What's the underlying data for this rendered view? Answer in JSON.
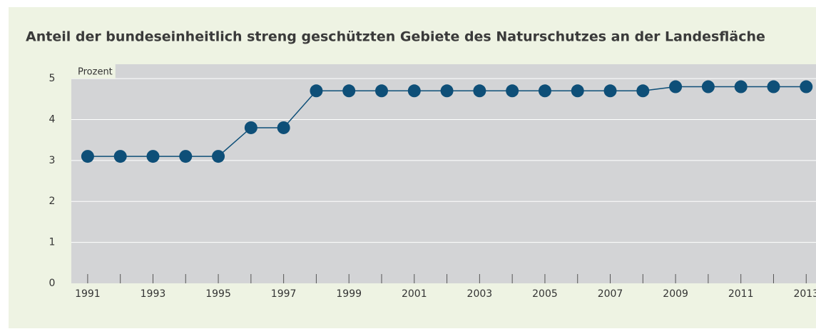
{
  "chart_data": {
    "type": "line",
    "title": "Anteil der bundeseinheitlich streng geschützten Gebiete des Naturschutzes an der Landesfläche",
    "ylabel": "Prozent",
    "x": [
      1991,
      1992,
      1993,
      1994,
      1995,
      1996,
      1997,
      1998,
      1999,
      2000,
      2001,
      2002,
      2003,
      2004,
      2005,
      2006,
      2007,
      2008,
      2009,
      2010,
      2011,
      2012,
      2013
    ],
    "series": [
      {
        "name": "Anteil",
        "color": "#0e4f78",
        "values": [
          3.1,
          3.1,
          3.1,
          3.1,
          3.1,
          3.8,
          3.8,
          4.7,
          4.7,
          4.7,
          4.7,
          4.7,
          4.7,
          4.7,
          4.7,
          4.7,
          4.7,
          4.7,
          4.8,
          4.8,
          4.8,
          4.8,
          4.8
        ]
      }
    ],
    "xlim": [
      1990.5,
      2013.3
    ],
    "xticks": [
      1991,
      1993,
      1995,
      1997,
      1999,
      2001,
      2003,
      2005,
      2007,
      2009,
      2011,
      2013
    ],
    "xminorticks": [
      1992,
      1994,
      1996,
      1998,
      2000,
      2002,
      2004,
      2006,
      2008,
      2010,
      2012
    ],
    "ylim": [
      0,
      5.35
    ],
    "yticks": [
      0,
      1,
      2,
      3,
      4,
      5
    ],
    "grid": true
  }
}
